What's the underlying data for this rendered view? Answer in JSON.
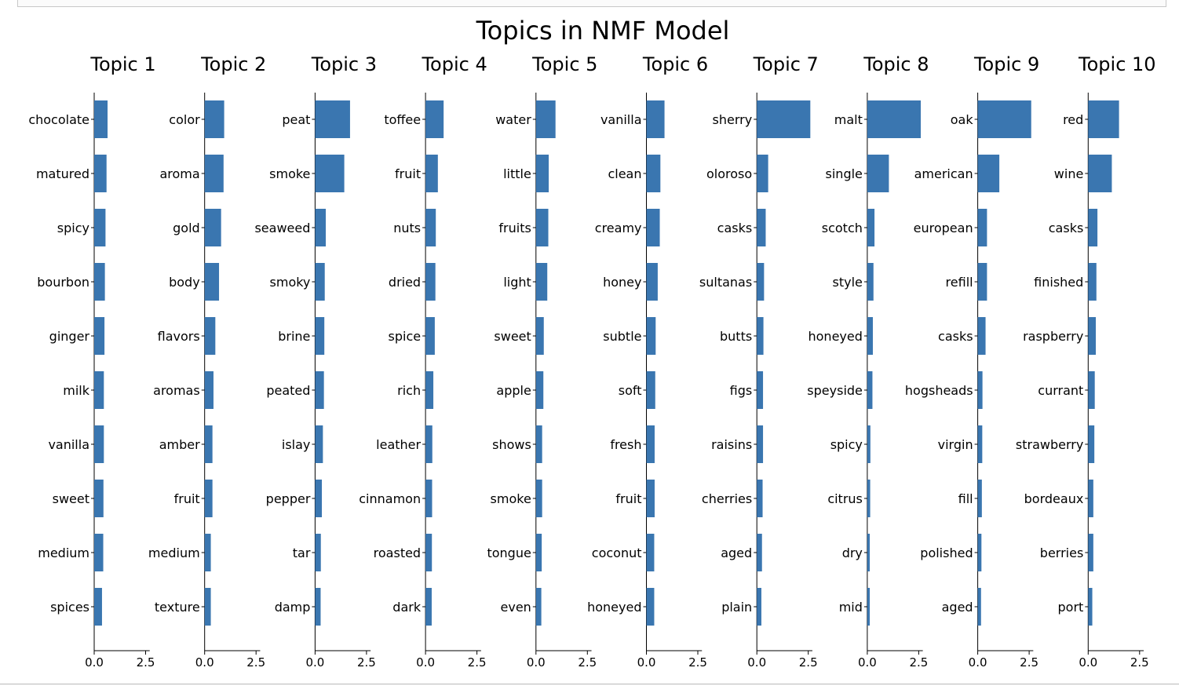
{
  "colors": {
    "bar": "#3a76b0",
    "axis": "#000000"
  },
  "chart_data": {
    "type": "bar",
    "orientation": "horizontal",
    "title": "Topics in NMF Model",
    "xlim": [
      0,
      2.7
    ],
    "xticks": [
      0,
      2.5
    ],
    "xtick_labels": [
      "0.0",
      "2.5"
    ],
    "grid": false,
    "topics": [
      {
        "name": "Topic 1",
        "words": [
          "chocolate",
          "matured",
          "spicy",
          "bourbon",
          "ginger",
          "milk",
          "vanilla",
          "sweet",
          "medium",
          "spices"
        ],
        "values": [
          0.65,
          0.6,
          0.55,
          0.52,
          0.5,
          0.47,
          0.47,
          0.45,
          0.44,
          0.38
        ]
      },
      {
        "name": "Topic 2",
        "words": [
          "color",
          "aroma",
          "gold",
          "body",
          "flavors",
          "aromas",
          "amber",
          "fruit",
          "medium",
          "texture"
        ],
        "values": [
          0.95,
          0.92,
          0.8,
          0.7,
          0.52,
          0.43,
          0.38,
          0.38,
          0.3,
          0.3
        ]
      },
      {
        "name": "Topic 3",
        "words": [
          "peat",
          "smoke",
          "seaweed",
          "smoky",
          "brine",
          "peated",
          "islay",
          "pepper",
          "tar",
          "damp"
        ],
        "values": [
          1.7,
          1.42,
          0.52,
          0.47,
          0.45,
          0.43,
          0.38,
          0.33,
          0.28,
          0.27
        ]
      },
      {
        "name": "Topic 4",
        "words": [
          "toffee",
          "fruit",
          "nuts",
          "dried",
          "spice",
          "rich",
          "leather",
          "cinnamon",
          "roasted",
          "dark"
        ],
        "values": [
          0.88,
          0.6,
          0.5,
          0.48,
          0.45,
          0.38,
          0.33,
          0.32,
          0.31,
          0.3
        ]
      },
      {
        "name": "Topic 5",
        "words": [
          "water",
          "little",
          "fruits",
          "light",
          "sweet",
          "apple",
          "shows",
          "smoke",
          "tongue",
          "even"
        ],
        "values": [
          0.95,
          0.62,
          0.6,
          0.55,
          0.38,
          0.36,
          0.3,
          0.3,
          0.28,
          0.26
        ]
      },
      {
        "name": "Topic 6",
        "words": [
          "vanilla",
          "clean",
          "creamy",
          "honey",
          "subtle",
          "soft",
          "fresh",
          "fruit",
          "coconut",
          "honeyed"
        ],
        "values": [
          0.88,
          0.68,
          0.65,
          0.55,
          0.45,
          0.43,
          0.4,
          0.4,
          0.38,
          0.38
        ]
      },
      {
        "name": "Topic 7",
        "words": [
          "sherry",
          "oloroso",
          "casks",
          "sultanas",
          "butts",
          "figs",
          "raisins",
          "cherries",
          "aged",
          "plain"
        ],
        "values": [
          2.6,
          0.55,
          0.43,
          0.35,
          0.32,
          0.3,
          0.3,
          0.28,
          0.25,
          0.22
        ]
      },
      {
        "name": "Topic 8",
        "words": [
          "malt",
          "single",
          "scotch",
          "style",
          "honeyed",
          "speyside",
          "spicy",
          "citrus",
          "dry",
          "mid"
        ],
        "values": [
          2.6,
          1.05,
          0.35,
          0.3,
          0.27,
          0.25,
          0.15,
          0.14,
          0.12,
          0.12
        ]
      },
      {
        "name": "Topic 9",
        "words": [
          "oak",
          "american",
          "european",
          "refill",
          "casks",
          "hogsheads",
          "virgin",
          "fill",
          "polished",
          "aged"
        ],
        "values": [
          2.6,
          1.05,
          0.45,
          0.45,
          0.38,
          0.23,
          0.22,
          0.2,
          0.18,
          0.16
        ]
      },
      {
        "name": "Topic 10",
        "words": [
          "red",
          "wine",
          "casks",
          "finished",
          "raspberry",
          "currant",
          "strawberry",
          "bordeaux",
          "berries",
          "port"
        ],
        "values": [
          1.5,
          1.15,
          0.45,
          0.4,
          0.37,
          0.32,
          0.3,
          0.25,
          0.25,
          0.2
        ]
      }
    ]
  }
}
